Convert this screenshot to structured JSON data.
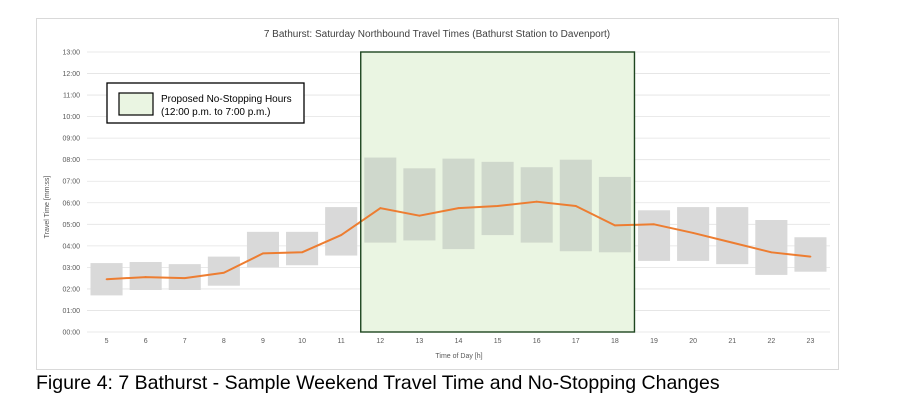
{
  "caption": "Figure 4: 7 Bathurst - Sample Weekend Travel Time and No-Stopping Changes",
  "chart_data": {
    "type": "bar",
    "title": "7 Bathurst: Saturday Northbound Travel Times (Bathurst Station to Davenport)",
    "xlabel": "Time of Day [h]",
    "ylabel": "Travel Time [mm:ss]",
    "y_unit": "minutes",
    "ylim": [
      0,
      13
    ],
    "y_ticks": [
      "00:00",
      "01:00",
      "02:00",
      "03:00",
      "04:00",
      "05:00",
      "06:00",
      "07:00",
      "08:00",
      "09:00",
      "10:00",
      "11:00",
      "12:00",
      "13:00"
    ],
    "grid": true,
    "categories": [
      "5",
      "6",
      "7",
      "8",
      "9",
      "10",
      "11",
      "12",
      "13",
      "14",
      "15",
      "16",
      "17",
      "18",
      "19",
      "20",
      "21",
      "22",
      "23"
    ],
    "range_bars": {
      "low": [
        1.7,
        1.95,
        1.95,
        2.15,
        3.0,
        3.1,
        3.55,
        4.15,
        4.25,
        3.85,
        4.5,
        4.15,
        3.75,
        3.7,
        3.3,
        3.3,
        3.15,
        2.65,
        2.8
      ],
      "high": [
        3.2,
        3.25,
        3.15,
        3.5,
        4.65,
        4.65,
        5.8,
        8.1,
        7.6,
        8.05,
        7.9,
        7.65,
        8.0,
        7.2,
        5.65,
        5.8,
        5.8,
        5.2,
        4.4
      ],
      "color": "#d9d9d9"
    },
    "series": [
      {
        "values": [
          2.45,
          2.55,
          2.5,
          2.75,
          3.65,
          3.7,
          4.5,
          5.75,
          5.4,
          5.75,
          5.85,
          6.05,
          5.85,
          4.95,
          5.0,
          4.6,
          4.15,
          3.7,
          3.5
        ],
        "color": "#ed7d31"
      }
    ],
    "highlight": {
      "x_from": "12",
      "x_to": "18",
      "fill": "#eaf5e2",
      "border": "#1e4620"
    },
    "legend": {
      "placement": "top-left",
      "label_line1": "Proposed No-Stopping Hours",
      "label_line2": "(12:00 p.m. to 7:00 p.m.)"
    }
  }
}
